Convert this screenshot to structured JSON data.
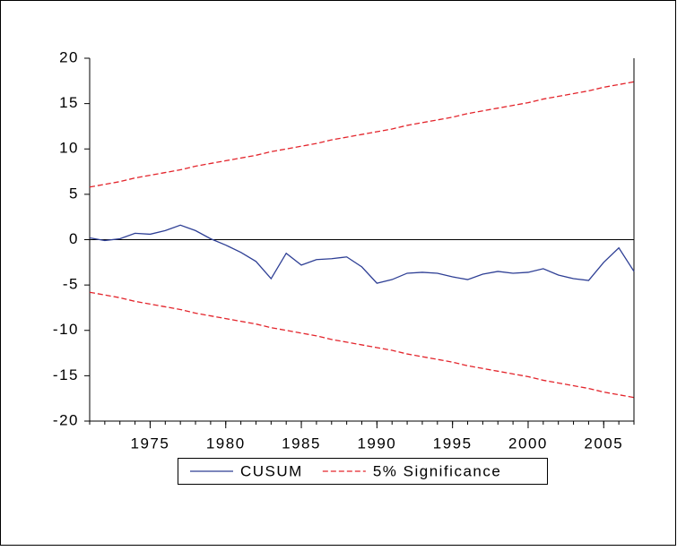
{
  "chart_data": {
    "type": "line",
    "x": [
      1971,
      1972,
      1973,
      1974,
      1975,
      1976,
      1977,
      1978,
      1979,
      1980,
      1981,
      1982,
      1983,
      1984,
      1985,
      1986,
      1987,
      1988,
      1989,
      1990,
      1991,
      1992,
      1993,
      1994,
      1995,
      1996,
      1997,
      1998,
      1999,
      2000,
      2001,
      2002,
      2003,
      2004,
      2005,
      2006,
      2007
    ],
    "series": [
      {
        "name": "CUSUM",
        "color": "#2e3f95",
        "dash": false,
        "values": [
          0.2,
          -0.1,
          0.1,
          0.7,
          0.6,
          1.0,
          1.6,
          1.0,
          0.1,
          -0.6,
          -1.4,
          -2.4,
          -4.3,
          -1.5,
          -2.8,
          -2.2,
          -2.1,
          -1.9,
          -3.0,
          -4.8,
          -4.4,
          -3.7,
          -3.6,
          -3.7,
          -4.1,
          -4.4,
          -3.8,
          -3.5,
          -3.7,
          -3.6,
          -3.2,
          -3.9,
          -4.3,
          -4.5,
          -2.5,
          -0.9,
          -3.5
        ]
      },
      {
        "name": "5% Significance",
        "color": "#e3242b",
        "dash": true,
        "values": [
          5.8,
          6.1,
          6.4,
          6.8,
          7.1,
          7.4,
          7.7,
          8.1,
          8.4,
          8.7,
          9.0,
          9.3,
          9.7,
          10.0,
          10.3,
          10.6,
          11.0,
          11.3,
          11.6,
          11.9,
          12.2,
          12.6,
          12.9,
          13.2,
          13.5,
          13.9,
          14.2,
          14.5,
          14.8,
          15.1,
          15.5,
          15.8,
          16.1,
          16.4,
          16.8,
          17.1,
          17.4
        ]
      },
      {
        "color": "#e3242b",
        "dash": true,
        "values": [
          -5.8,
          -6.1,
          -6.4,
          -6.8,
          -7.1,
          -7.4,
          -7.7,
          -8.1,
          -8.4,
          -8.7,
          -9.0,
          -9.3,
          -9.7,
          -10.0,
          -10.3,
          -10.6,
          -11.0,
          -11.3,
          -11.6,
          -11.9,
          -12.2,
          -12.6,
          -12.9,
          -13.2,
          -13.5,
          -13.9,
          -14.2,
          -14.5,
          -14.8,
          -15.1,
          -15.5,
          -15.8,
          -16.1,
          -16.4,
          -16.8,
          -17.1,
          -17.4
        ]
      }
    ],
    "xlim": [
      1971,
      2007
    ],
    "xticks": [
      1975,
      1980,
      1985,
      1990,
      1995,
      2000,
      2005
    ],
    "ylim": [
      -20,
      20
    ],
    "yticks": [
      -20,
      -15,
      -10,
      -5,
      0,
      5,
      10,
      15,
      20
    ],
    "grid": false
  }
}
